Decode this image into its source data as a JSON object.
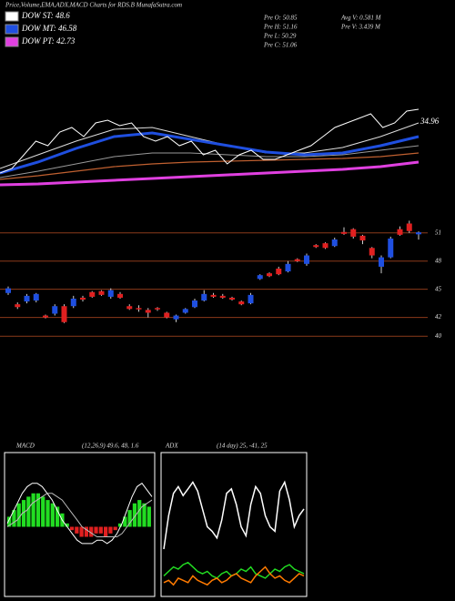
{
  "header": {
    "title": "Price,Volume,EMA,ADX,MACD Charts for RDS.B MunafaSutra.com",
    "legend": [
      {
        "label": "DOW ST: 48.6",
        "color": "#ffffff"
      },
      {
        "label": "DOW MT: 46.58",
        "color": "#1f4fe0"
      },
      {
        "label": "DOW PT: 42.73",
        "color": "#e040e0"
      }
    ],
    "stats": [
      "Pre O: 50.85",
      "Pre H: 51.16",
      "Pre L: 50.29",
      "Pre C: 51.06",
      "Avg V: 0.581 M",
      "Pre V: 3.439 M"
    ]
  },
  "chart_data": [
    {
      "type": "line",
      "price_label": "34.96",
      "ylim": [
        25,
        40
      ],
      "series": [
        {
          "color": "#c06030",
          "width": 1.2,
          "values": [
            26.8,
            27.2,
            27.7,
            28.2,
            28.5,
            28.7,
            28.8,
            28.9,
            29,
            29.1,
            29.3,
            29.7
          ]
        },
        {
          "color": "#999999",
          "width": 1,
          "values": [
            27,
            27.7,
            28.5,
            29.3,
            29.7,
            29.7,
            29.5,
            29.3,
            29.3,
            29.5,
            30,
            30.5
          ]
        },
        {
          "color": "#e040e0",
          "width": 3,
          "values": [
            26.2,
            26.3,
            26.5,
            26.7,
            26.9,
            27.1,
            27.3,
            27.5,
            27.7,
            27.9,
            28.2,
            28.7
          ]
        },
        {
          "color": "#dddddd",
          "width": 1,
          "values": [
            28,
            29.5,
            31,
            32.3,
            32.5,
            31.5,
            30.5,
            29.7,
            29.7,
            30.3,
            31.5,
            33
          ]
        },
        {
          "color": "#1f4fe0",
          "width": 3,
          "values": [
            27.5,
            28.7,
            30.2,
            31.5,
            31.9,
            31.2,
            30.5,
            29.8,
            29.5,
            29.7,
            30.5,
            31.5
          ]
        },
        {
          "color": "#ffffff",
          "width": 1,
          "values": [
            27.5,
            28,
            29.5,
            31,
            30.5,
            32,
            32.5,
            31.5,
            33,
            33.3,
            32.7,
            33,
            31.5,
            31,
            31.5,
            30.5,
            31,
            29.5,
            30,
            28.5,
            29.5,
            30,
            29,
            29,
            29.5,
            30,
            30.5,
            31.5,
            32.5,
            33,
            33.5,
            34,
            32.5,
            33,
            34.3,
            34.5
          ]
        }
      ]
    },
    {
      "type": "candlestick",
      "ylim": [
        37.5,
        53.5
      ],
      "yticks": [
        40,
        42,
        45,
        48,
        51
      ],
      "grid_color": "#8b3a1a",
      "up_color": "#1f4fe0",
      "down_color": "#e02020",
      "open": [
        44.6,
        43.4,
        43.7,
        43.8,
        42.2,
        42.4,
        43.2,
        43.2,
        44.1,
        44.7,
        44.8,
        44.2,
        44.5,
        43.2,
        43.0,
        42.8,
        43.0,
        42.5,
        41.8,
        42.5,
        43.1,
        43.8,
        44.4,
        44.3,
        44.1,
        43.7,
        43.5,
        46.1,
        46.7,
        47.2,
        46.9,
        48.2,
        47.7,
        49.7,
        49.9,
        49.6,
        51.1,
        51.4,
        50.7,
        49.4,
        47.4,
        48.4,
        51.4,
        52.0,
        50.85
      ],
      "high": [
        45.3,
        43.6,
        44.5,
        44.6,
        42.3,
        43.4,
        43.4,
        44.3,
        44.3,
        44.8,
        44.9,
        45.1,
        44.7,
        43.4,
        43.3,
        43.0,
        43.1,
        42.6,
        42.3,
        43.0,
        44.0,
        44.9,
        44.6,
        44.5,
        44.2,
        43.8,
        44.6,
        46.6,
        46.8,
        47.4,
        48.0,
        48.3,
        48.8,
        49.8,
        50.0,
        50.5,
        51.6,
        51.5,
        50.8,
        49.5,
        48.6,
        50.6,
        51.7,
        52.3,
        51.16
      ],
      "low": [
        44.4,
        42.9,
        43.5,
        43.6,
        41.9,
        42.2,
        41.4,
        43.0,
        43.7,
        44.1,
        44.3,
        44.0,
        44.0,
        42.8,
        42.6,
        42.0,
        42.7,
        41.9,
        41.5,
        42.4,
        43.0,
        43.7,
        44.1,
        44.0,
        43.8,
        43.3,
        43.4,
        46.0,
        46.3,
        46.5,
        46.8,
        47.9,
        47.5,
        49.4,
        49.3,
        49.5,
        50.8,
        50.4,
        49.8,
        48.3,
        46.7,
        48.3,
        50.7,
        51.0,
        50.29
      ],
      "close": [
        45.1,
        43.1,
        44.3,
        44.5,
        42.0,
        43.2,
        41.5,
        44.0,
        43.9,
        44.2,
        44.4,
        44.9,
        44.1,
        42.9,
        42.9,
        42.5,
        42.9,
        42.0,
        42.2,
        42.9,
        43.8,
        44.5,
        44.2,
        44.1,
        43.9,
        43.4,
        44.4,
        46.5,
        46.4,
        46.6,
        47.7,
        48.0,
        48.6,
        49.5,
        49.4,
        50.3,
        50.9,
        50.6,
        50.2,
        48.6,
        48.4,
        50.4,
        50.8,
        51.2,
        51.06
      ]
    },
    {
      "type": "macd",
      "title": "MACD",
      "subtitle": "(12,26,9) 49.6, 48, 1.6",
      "ylim": [
        -2,
        2
      ],
      "pos_color": "#22dd22",
      "neg_color": "#e02020",
      "histogram": [
        0.3,
        0.5,
        0.7,
        0.8,
        0.9,
        1.0,
        1.0,
        0.9,
        0.8,
        0.7,
        0.6,
        0.4,
        0.1,
        -0.1,
        -0.2,
        -0.3,
        -0.3,
        -0.3,
        -0.2,
        -0.2,
        -0.3,
        -0.2,
        -0.1,
        0.1,
        0.3,
        0.5,
        0.7,
        0.8,
        0.7,
        0.6
      ],
      "series": [
        {
          "color": "#ffffff",
          "values": [
            0.1,
            0.4,
            0.7,
            1.0,
            1.2,
            1.3,
            1.3,
            1.2,
            1.0,
            0.8,
            0.5,
            0.2,
            0.0,
            -0.2,
            -0.4,
            -0.5,
            -0.5,
            -0.5,
            -0.4,
            -0.4,
            -0.5,
            -0.4,
            -0.2,
            0.1,
            0.5,
            0.9,
            1.2,
            1.3,
            1.1,
            0.9
          ]
        },
        {
          "color": "#bbbbbb",
          "values": [
            0.0,
            0.1,
            0.2,
            0.4,
            0.5,
            0.7,
            0.8,
            0.9,
            1.0,
            1.0,
            0.9,
            0.8,
            0.6,
            0.4,
            0.2,
            0.0,
            -0.1,
            -0.2,
            -0.3,
            -0.3,
            -0.3,
            -0.3,
            -0.3,
            -0.2,
            0.0,
            0.2,
            0.4,
            0.6,
            0.7,
            0.8
          ]
        }
      ]
    },
    {
      "type": "adx",
      "title": "ADX",
      "subtitle": "(14 day) 25, -41, 25",
      "ylim": [
        0,
        60
      ],
      "series": [
        {
          "color": "#ffffff",
          "values": [
            20,
            35,
            45,
            48,
            44,
            47,
            50,
            46,
            38,
            30,
            28,
            25,
            33,
            45,
            47,
            40,
            30,
            26,
            40,
            48,
            45,
            35,
            30,
            28,
            46,
            50,
            42,
            30,
            35,
            38
          ]
        },
        {
          "color": "#22dd22",
          "values": [
            8,
            10,
            12,
            11,
            13,
            14,
            12,
            10,
            9,
            10,
            8,
            7,
            9,
            10,
            8,
            9,
            11,
            10,
            12,
            9,
            8,
            7,
            9,
            11,
            10,
            12,
            13,
            11,
            10,
            9
          ]
        },
        {
          "color": "#ff7a00",
          "values": [
            5,
            6,
            4,
            7,
            6,
            5,
            8,
            6,
            5,
            4,
            6,
            7,
            5,
            6,
            8,
            9,
            7,
            6,
            5,
            8,
            10,
            12,
            9,
            7,
            8,
            6,
            5,
            7,
            9,
            8
          ]
        }
      ]
    }
  ]
}
